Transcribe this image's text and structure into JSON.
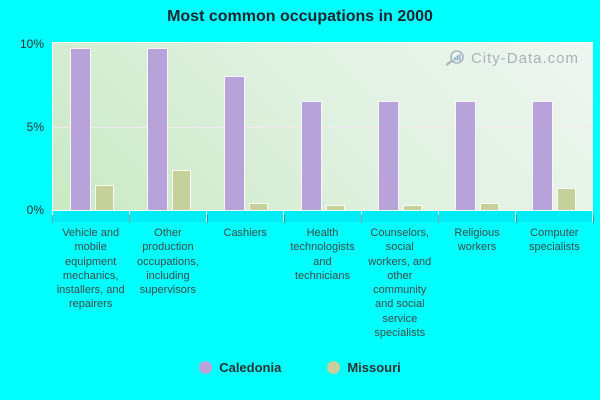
{
  "title": "Most common occupations in 2000",
  "watermark": "City-Data.com",
  "colors": {
    "background": "#00ffff",
    "caledonia": "#b7a3d9",
    "missouri": "#c5d09b",
    "title_text": "#1f2430",
    "axis_text": "#3e4b4e",
    "watermark_text": "#97a2ad"
  },
  "chart_data": {
    "type": "bar",
    "title": "Most common occupations in 2000",
    "categories": [
      "Vehicle and mobile equipment mechanics, installers, and repairers",
      "Other production occupations, including supervisors",
      "Cashiers",
      "Health technologists and technicians",
      "Counselors, social workers, and other community and social service specialists",
      "Religious workers",
      "Computer specialists"
    ],
    "series": [
      {
        "name": "Caledonia",
        "color": "#b7a3d9",
        "values": [
          9.7,
          9.7,
          8.0,
          6.5,
          6.5,
          6.5,
          6.5
        ]
      },
      {
        "name": "Missouri",
        "color": "#c5d09b",
        "values": [
          1.5,
          2.4,
          0.4,
          0.3,
          0.3,
          0.4,
          1.3
        ]
      }
    ],
    "xlabel": "",
    "ylabel": "",
    "ylim": [
      0,
      10
    ],
    "yticks": [
      "0%",
      "5%",
      "10%"
    ],
    "ytick_values": [
      0,
      5,
      10
    ],
    "grid": true,
    "legend_position": "bottom"
  }
}
